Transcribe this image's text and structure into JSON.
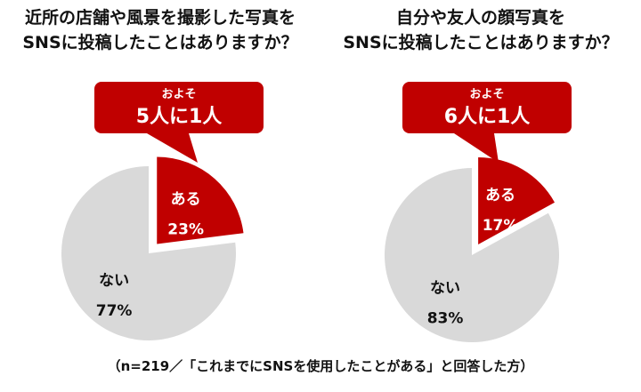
{
  "colors": {
    "accent": "#c00000",
    "neutral": "#d9d9d9",
    "text": "#111111"
  },
  "footnote": "（n=219／「これまでにSNSを使用したことがある」と回答した方）",
  "chart_data": [
    {
      "type": "pie",
      "title": [
        "近所の店舗や風景を撮影した写真を",
        "SNSに投稿したことはありますか？"
      ],
      "callout": {
        "line1": "およそ",
        "line2": "5人に1人"
      },
      "slices": [
        {
          "label": "ある",
          "value": 23,
          "display": "23%",
          "color": "#c00000",
          "exploded": true
        },
        {
          "label": "ない",
          "value": 77,
          "display": "77%",
          "color": "#d9d9d9",
          "exploded": false
        }
      ]
    },
    {
      "type": "pie",
      "title": [
        "自分や友人の顔写真を",
        "SNSに投稿したことはありますか？"
      ],
      "callout": {
        "line1": "およそ",
        "line2": "6人に1人"
      },
      "slices": [
        {
          "label": "ある",
          "value": 17,
          "display": "17%",
          "color": "#c00000",
          "exploded": true
        },
        {
          "label": "ない",
          "value": 83,
          "display": "83%",
          "color": "#d9d9d9",
          "exploded": false
        }
      ]
    }
  ]
}
